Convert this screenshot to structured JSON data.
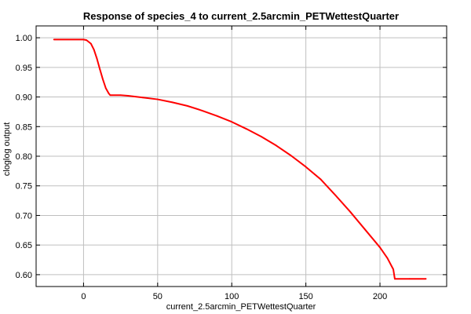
{
  "chart_data": {
    "type": "line",
    "title": "Response of species_4 to current_2.5arcmin_PETWettestQuarter",
    "xlabel": "current_2.5arcmin_PETWettestQuarter",
    "ylabel": "cloglog output",
    "xlim": [
      -32,
      245
    ],
    "ylim": [
      0.58,
      1.02
    ],
    "x_ticks": [
      0,
      50,
      100,
      150,
      200
    ],
    "y_ticks": [
      0.6,
      0.65,
      0.7,
      0.75,
      0.8,
      0.85,
      0.9,
      0.95,
      1.0
    ],
    "grid": true,
    "series": [
      {
        "color": "#ff0000",
        "x": [
          -20,
          0,
          2,
          5,
          7,
          9,
          11,
          13,
          15,
          17,
          18,
          19,
          25,
          30,
          40,
          50,
          60,
          70,
          80,
          90,
          100,
          110,
          120,
          130,
          140,
          150,
          160,
          170,
          180,
          190,
          200,
          205,
          209,
          210,
          220,
          231
        ],
        "y": [
          0.997,
          0.997,
          0.996,
          0.99,
          0.98,
          0.965,
          0.947,
          0.93,
          0.915,
          0.906,
          0.903,
          0.903,
          0.903,
          0.902,
          0.899,
          0.896,
          0.891,
          0.885,
          0.877,
          0.868,
          0.858,
          0.846,
          0.833,
          0.818,
          0.801,
          0.782,
          0.761,
          0.734,
          0.706,
          0.676,
          0.646,
          0.628,
          0.609,
          0.593,
          0.593,
          0.593
        ]
      }
    ]
  }
}
